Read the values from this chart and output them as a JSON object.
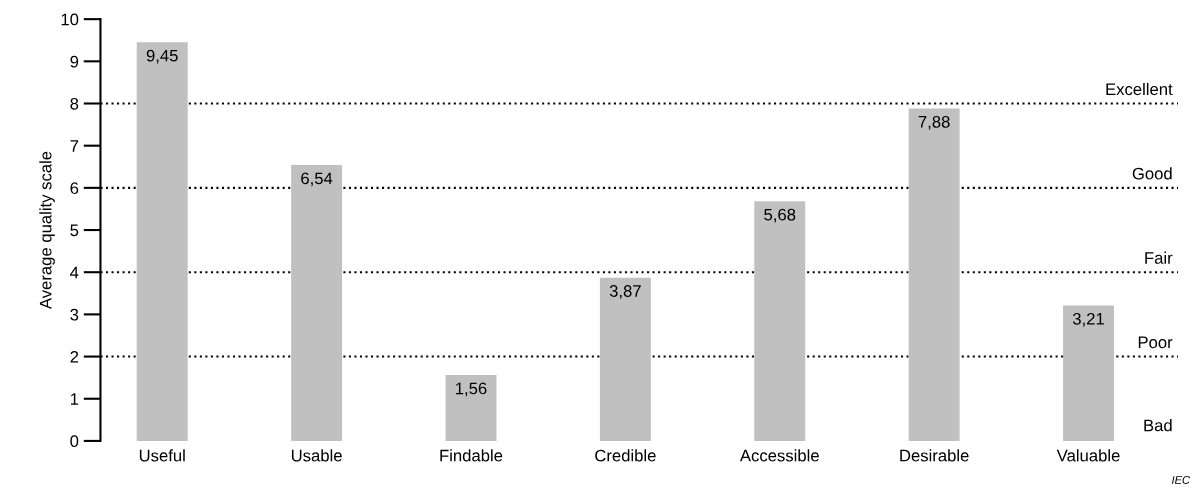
{
  "chart_data": {
    "type": "bar",
    "ylabel": "Average quality scale",
    "categories": [
      "Useful",
      "Usable",
      "Findable",
      "Credible",
      "Accessible",
      "Desirable",
      "Valuable"
    ],
    "values": [
      9.45,
      6.54,
      1.56,
      3.87,
      5.68,
      7.88,
      3.21
    ],
    "value_labels": [
      "9,45",
      "6,54",
      "1,56",
      "3,87",
      "5,68",
      "7,88",
      "3,21"
    ],
    "color": "#c0c0c0",
    "ylim": [
      0,
      10
    ],
    "yticks": [
      0,
      1,
      2,
      3,
      4,
      5,
      6,
      7,
      8,
      9,
      10
    ],
    "grid": false,
    "ref_lines": [
      {
        "axis": "y",
        "value": 2,
        "label": "Poor",
        "line_style": "dotted",
        "color": "#000000"
      },
      {
        "axis": "y",
        "value": 4,
        "label": "Fair",
        "line_style": "dotted",
        "color": "#000000"
      },
      {
        "axis": "y",
        "value": 6,
        "label": "Good",
        "line_style": "dotted",
        "color": "#000000"
      },
      {
        "axis": "y",
        "value": 8,
        "label": "Excellent",
        "line_style": "dotted",
        "color": "#000000"
      }
    ],
    "annotations": [
      "Bad",
      "IEC"
    ]
  }
}
